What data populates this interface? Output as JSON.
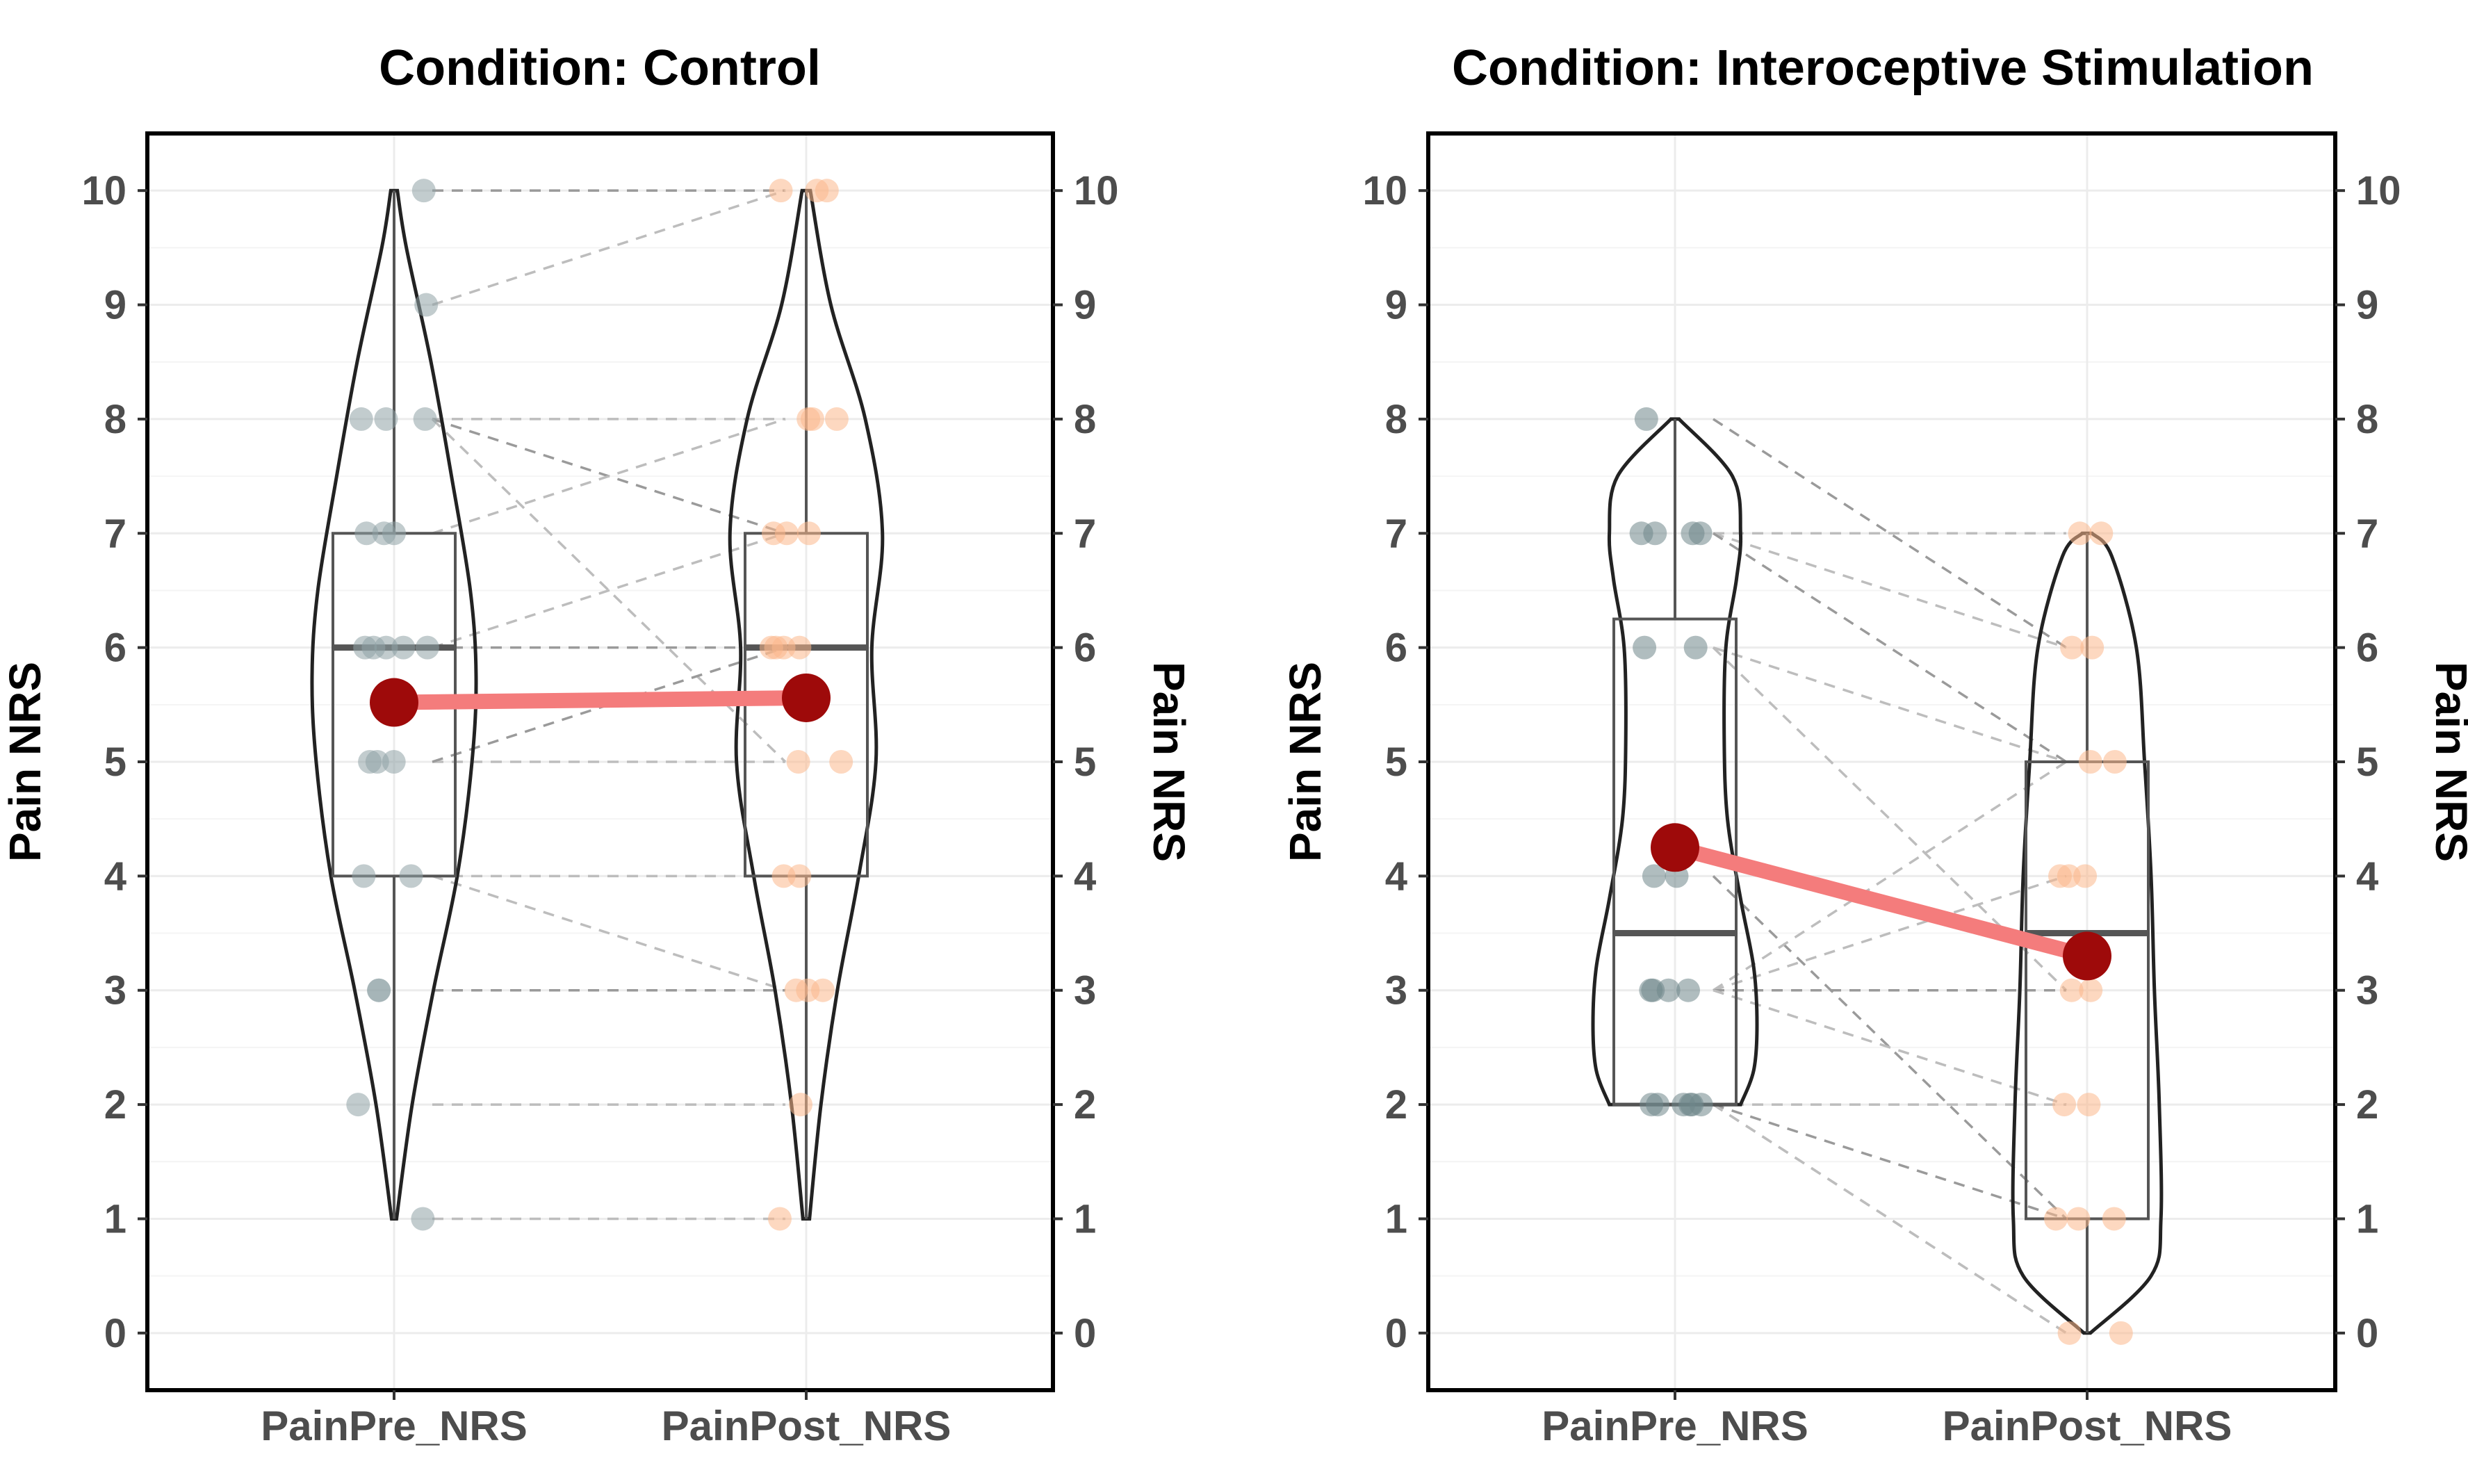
{
  "chart_data": [
    {
      "type": "violin",
      "title": "Condition: Control",
      "ylabel": "Pain NRS",
      "ylabel_right": "Pain NRS",
      "yticks": [
        0,
        1,
        2,
        3,
        4,
        5,
        6,
        7,
        8,
        9,
        10
      ],
      "ylim": [
        -0.5,
        10.5
      ],
      "categories": [
        "PainPre_NRS",
        "PainPost_NRS"
      ],
      "point_colors": [
        "#8fa3a6",
        "#fbb88c"
      ],
      "series": [
        {
          "name": "PainPre_NRS",
          "points": [
            10,
            9,
            8,
            8,
            8,
            7,
            7,
            7,
            6,
            6,
            6,
            6,
            6,
            5,
            5,
            5,
            4,
            4,
            3,
            3,
            2,
            1
          ],
          "box": {
            "q1": 4,
            "median": 6,
            "q3": 7,
            "min": 1,
            "max": 10
          },
          "violin_density": [
            [
              1,
              0.03
            ],
            [
              2,
              0.22
            ],
            [
              3,
              0.48
            ],
            [
              4,
              0.77
            ],
            [
              5,
              0.95
            ],
            [
              5.75,
              1.0
            ],
            [
              6.5,
              0.93
            ],
            [
              7.5,
              0.7
            ],
            [
              8.5,
              0.45
            ],
            [
              9.5,
              0.15
            ],
            [
              10,
              0.04
            ]
          ],
          "mean": 5.52
        },
        {
          "name": "PainPost_NRS",
          "points": [
            10,
            10,
            10,
            8,
            8,
            8,
            7,
            7,
            7,
            6,
            6,
            6,
            6,
            5,
            5,
            4,
            4,
            3,
            3,
            3,
            2,
            1
          ],
          "box": {
            "q1": 4,
            "median": 6,
            "q3": 7,
            "min": 1,
            "max": 10
          },
          "violin_density": [
            [
              1,
              0.04
            ],
            [
              2,
              0.18
            ],
            [
              3,
              0.38
            ],
            [
              4,
              0.64
            ],
            [
              5,
              0.85
            ],
            [
              6,
              0.8
            ],
            [
              7,
              0.93
            ],
            [
              8,
              0.72
            ],
            [
              9,
              0.3
            ],
            [
              10,
              0.05
            ]
          ],
          "mean": 5.56
        }
      ],
      "pairs": [
        [
          10,
          10
        ],
        [
          9,
          10
        ],
        [
          8,
          8
        ],
        [
          8,
          7
        ],
        [
          8,
          5
        ],
        [
          7,
          8
        ],
        [
          6,
          6
        ],
        [
          6,
          7
        ],
        [
          5,
          5
        ],
        [
          5,
          6
        ],
        [
          4,
          4
        ],
        [
          4,
          3
        ],
        [
          3,
          3
        ],
        [
          2,
          2
        ],
        [
          1,
          1
        ]
      ],
      "mean_line_color": "#f47c7c",
      "mean_point_color": "#9e0a0a"
    },
    {
      "type": "violin",
      "title": "Condition: Interoceptive Stimulation",
      "ylabel": "Pain NRS",
      "ylabel_right": "Pain NRS",
      "yticks": [
        0,
        1,
        2,
        3,
        4,
        5,
        6,
        7,
        8,
        9,
        10
      ],
      "ylim": [
        -0.5,
        10.5
      ],
      "categories": [
        "PainPre_NRS",
        "PainPost_NRS"
      ],
      "point_colors": [
        "#6f878b",
        "#fbb88c"
      ],
      "series": [
        {
          "name": "PainPre_NRS",
          "points": [
            8,
            7,
            7,
            7,
            7,
            6,
            6,
            4,
            4,
            3,
            3,
            3,
            3,
            2,
            2,
            2,
            2,
            2,
            2
          ],
          "box": {
            "q1": 2,
            "median": 3.5,
            "q3": 6.25,
            "min": 2,
            "max": 8
          },
          "violin_density": [
            [
              2,
              0.8
            ],
            [
              2.3,
              0.96
            ],
            [
              2.7,
              1.0
            ],
            [
              3.2,
              0.96
            ],
            [
              3.8,
              0.8
            ],
            [
              4.5,
              0.64
            ],
            [
              5.2,
              0.6
            ],
            [
              6,
              0.62
            ],
            [
              6.6,
              0.75
            ],
            [
              7,
              0.8
            ],
            [
              7.5,
              0.7
            ],
            [
              8,
              0.05
            ]
          ],
          "mean": 4.25
        },
        {
          "name": "PainPost_NRS",
          "points": [
            7,
            7,
            6,
            6,
            5,
            5,
            4,
            4,
            4,
            3,
            3,
            2,
            2,
            1,
            1,
            1,
            0,
            0
          ],
          "box": {
            "q1": 1,
            "median": 3.5,
            "q3": 5,
            "min": 0,
            "max": 7
          },
          "violin_density": [
            [
              0,
              0.04
            ],
            [
              0.5,
              0.78
            ],
            [
              1,
              0.9
            ],
            [
              2,
              0.88
            ],
            [
              3,
              0.82
            ],
            [
              4,
              0.78
            ],
            [
              5,
              0.7
            ],
            [
              6,
              0.6
            ],
            [
              6.8,
              0.3
            ],
            [
              7,
              0.06
            ]
          ],
          "mean": 3.3
        }
      ],
      "pairs": [
        [
          8,
          6
        ],
        [
          7,
          7
        ],
        [
          7,
          6
        ],
        [
          7,
          5
        ],
        [
          6,
          5
        ],
        [
          6,
          3
        ],
        [
          4,
          1
        ],
        [
          3,
          5
        ],
        [
          3,
          4
        ],
        [
          3,
          3
        ],
        [
          3,
          2
        ],
        [
          2,
          2
        ],
        [
          2,
          1
        ],
        [
          2,
          0
        ],
        [
          2,
          0
        ]
      ],
      "mean_line_color": "#f47c7c",
      "mean_point_color": "#9e0a0a"
    }
  ]
}
